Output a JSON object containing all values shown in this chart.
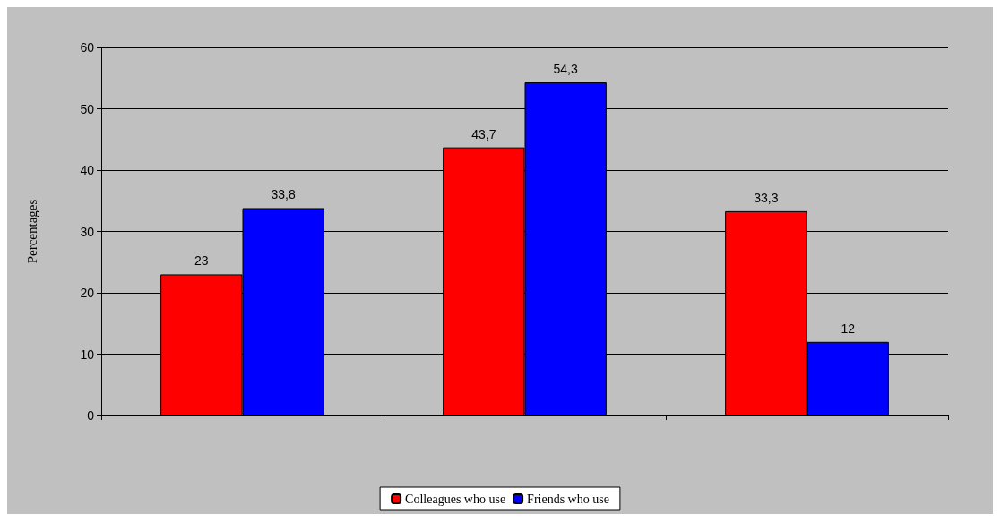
{
  "chart_data": {
    "type": "bar",
    "ylabel": "Percentages",
    "categories": [
      null,
      null,
      null
    ],
    "series": [
      {
        "name": "Colleagues who use",
        "color": "#ff0000",
        "values": [
          23,
          43.7,
          33.3
        ],
        "value_labels": [
          "23",
          "43,7",
          "33,3"
        ]
      },
      {
        "name": "Friends who use",
        "color": "#0000ff",
        "values": [
          33.8,
          54.3,
          12
        ],
        "value_labels": [
          "33,8",
          "54,3",
          "12"
        ]
      }
    ],
    "ylim": [
      0,
      60
    ],
    "yticks": [
      0,
      10,
      20,
      30,
      40,
      50,
      60
    ],
    "grid": "y",
    "legend": "bottom"
  }
}
